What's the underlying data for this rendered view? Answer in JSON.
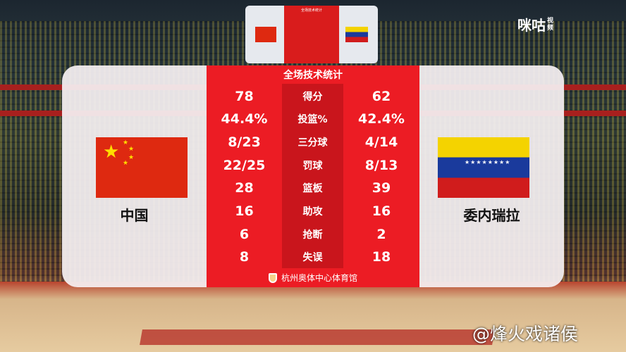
{
  "broadcaster_logo": {
    "brand": "咪咕",
    "sub": "视频"
  },
  "watermark": "@烽火戏诸侯",
  "scoreboard": {
    "title": "全场技术统计",
    "home": {
      "name": "中国",
      "flag": "china-flag",
      "color": "#de2910"
    },
    "away": {
      "name": "委内瑞拉",
      "flag": "venezuela-flag"
    },
    "rows": [
      {
        "label": "得分",
        "home": "78",
        "away": "62"
      },
      {
        "label": "投篮%",
        "home": "44.4%",
        "away": "42.4%"
      },
      {
        "label": "三分球",
        "home": "8/23",
        "away": "4/14"
      },
      {
        "label": "罚球",
        "home": "22/25",
        "away": "8/13"
      },
      {
        "label": "篮板",
        "home": "28",
        "away": "39"
      },
      {
        "label": "助攻",
        "home": "16",
        "away": "16"
      },
      {
        "label": "抢断",
        "home": "6",
        "away": "2"
      },
      {
        "label": "失误",
        "home": "8",
        "away": "18"
      }
    ],
    "venue": "杭州奥体中心体育馆",
    "accent": "#ec1c24"
  }
}
